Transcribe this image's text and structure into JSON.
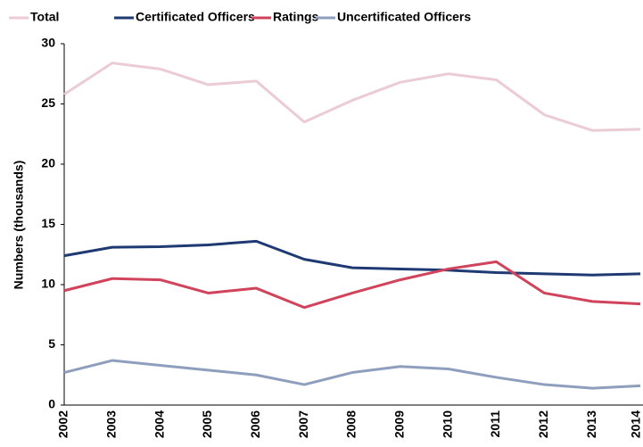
{
  "chart_data": {
    "type": "line",
    "y_label": "Numbers (thousands)",
    "categories": [
      "2002",
      "2003",
      "2004",
      "2005",
      "2006",
      "2007",
      "2008",
      "2009",
      "2010",
      "2011",
      "2012",
      "2013",
      "2014"
    ],
    "series": [
      {
        "name": "Total",
        "color": "#ebccd4",
        "values": [
          25.8,
          28.4,
          27.9,
          26.6,
          26.9,
          23.5,
          25.3,
          26.8,
          27.5,
          27.0,
          24.1,
          22.8,
          22.9
        ]
      },
      {
        "name": "Certificated Officers",
        "color": "#1f3a73",
        "values": [
          12.4,
          13.1,
          13.15,
          13.3,
          13.6,
          12.1,
          11.4,
          11.3,
          11.2,
          11.0,
          10.9,
          10.8,
          10.9
        ]
      },
      {
        "name": "Ratings",
        "color": "#d0435b",
        "values": [
          9.5,
          10.5,
          10.4,
          9.3,
          9.7,
          8.1,
          9.3,
          10.4,
          11.3,
          11.9,
          9.3,
          8.6,
          8.4
        ]
      },
      {
        "name": "Uncertificated Officers",
        "color": "#8e9fbe",
        "values": [
          2.7,
          3.7,
          3.3,
          2.9,
          2.5,
          1.7,
          2.7,
          3.2,
          3.0,
          2.3,
          1.7,
          1.4,
          1.6
        ]
      }
    ],
    "ylim": [
      0,
      30
    ],
    "yticks": [
      0,
      5,
      10,
      15,
      20,
      25,
      30
    ],
    "legend": "top"
  }
}
